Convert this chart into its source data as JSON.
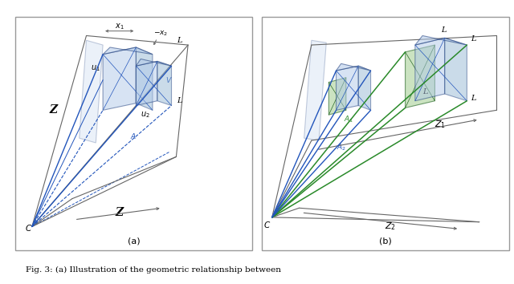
{
  "fig_width": 6.4,
  "fig_height": 3.54,
  "dpi": 100,
  "bg_color": "#ffffff",
  "blue_fill": "#b0c8e8",
  "blue_edge": "#1a3a7a",
  "blue_fill2": "#8ab0d0",
  "green_fill": "#b0d4a0",
  "green_edge": "#2a6a2a",
  "gray_line": "#666666",
  "blue_line": "#2255bb",
  "green_line": "#2a8a2a",
  "caption": "Fig. 3: (a) Illustration of the geometric relationship between",
  "label_a": "(a)",
  "label_b": "(b)"
}
